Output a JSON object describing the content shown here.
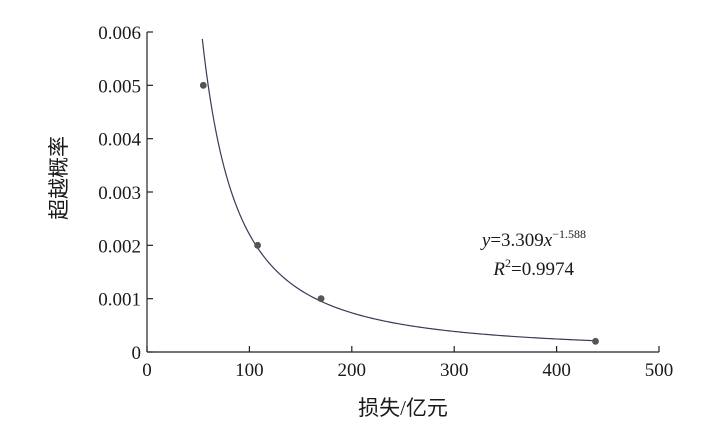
{
  "chart_data": {
    "type": "scatter",
    "title": "",
    "xlabel": "损失/亿元",
    "ylabel": "超越概率",
    "xlim": [
      0,
      500
    ],
    "ylim": [
      0,
      0.006
    ],
    "xticks": [
      0,
      100,
      200,
      300,
      400,
      500
    ],
    "xtick_labels": [
      "0",
      "100",
      "200",
      "300",
      "400",
      "500"
    ],
    "yticks": [
      0,
      0.001,
      0.002,
      0.003,
      0.004,
      0.005,
      0.006
    ],
    "ytick_labels": [
      "0",
      "0.001",
      "0.002",
      "0.003",
      "0.004",
      "0.005",
      "0.006"
    ],
    "grid": false,
    "points": [
      {
        "x": 55,
        "y": 0.005
      },
      {
        "x": 108,
        "y": 0.002
      },
      {
        "x": 170,
        "y": 0.001
      },
      {
        "x": 438,
        "y": 0.0002
      }
    ],
    "fit": {
      "a": 3.309,
      "b": -1.588,
      "x_range": [
        54,
        438
      ],
      "equation_y": "y",
      "equation_mid": "=3.309",
      "equation_x": "x",
      "equation_exp": "−1.588",
      "r2_r": "R",
      "r2_sup": "2",
      "r2_val": "=0.9974"
    },
    "colors": {
      "point": "#555555",
      "curve": "#3a3a5a",
      "axis": "#222222"
    }
  }
}
